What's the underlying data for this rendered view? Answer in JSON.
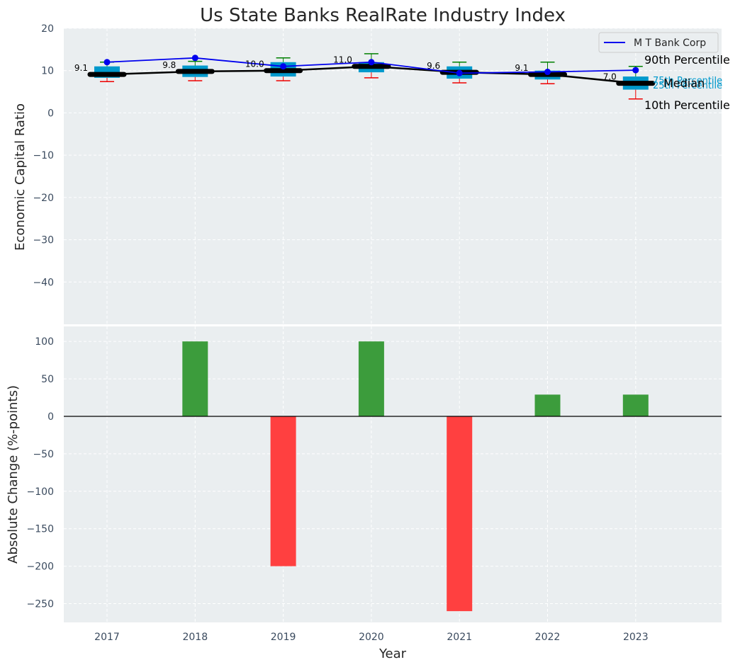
{
  "chart_data": [
    {
      "type": "box",
      "title": "Us State Banks RealRate Industry Index",
      "ylabel": "Economic Capital Ratio",
      "xlabel": "",
      "categories": [
        "2017",
        "2018",
        "2019",
        "2020",
        "2021",
        "2022",
        "2023"
      ],
      "ylim": [
        -50,
        20
      ],
      "yticks": [
        20,
        10,
        0,
        -10,
        -20,
        -30,
        -40
      ],
      "boxes": [
        {
          "year": "2017",
          "p10": 7.4,
          "q1": 8.3,
          "median": 9.1,
          "q3": 11.0,
          "p90": 12.0
        },
        {
          "year": "2018",
          "p10": 7.6,
          "q1": 8.5,
          "median": 9.8,
          "q3": 11.2,
          "p90": 12.2
        },
        {
          "year": "2019",
          "p10": 7.6,
          "q1": 8.6,
          "median": 10.0,
          "q3": 12.0,
          "p90": 13.0
        },
        {
          "year": "2020",
          "p10": 8.3,
          "q1": 9.6,
          "median": 11.0,
          "q3": 12.0,
          "p90": 14.0
        },
        {
          "year": "2021",
          "p10": 7.1,
          "q1": 8.1,
          "median": 9.6,
          "q3": 11.0,
          "p90": 12.0
        },
        {
          "year": "2022",
          "p10": 6.9,
          "q1": 7.9,
          "median": 9.1,
          "q3": 10.0,
          "p90": 12.0
        },
        {
          "year": "2023",
          "p10": 3.3,
          "q1": 5.5,
          "median": 7.0,
          "q3": 8.6,
          "p90": 11.0
        }
      ],
      "median_labels": [
        "9.1",
        "9.8",
        "10.0",
        "11.0",
        "9.6",
        "9.1",
        "7.0"
      ],
      "series": [
        {
          "name": "M T Bank Corp",
          "values": [
            12.0,
            13.0,
            11.0,
            12.0,
            9.4,
            9.7,
            10.1
          ],
          "color": "#0000ee"
        }
      ],
      "median_line_color": "#000000",
      "box_color": "#0099cc",
      "whisker_upper_color": "#008000",
      "whisker_lower_color": "#ee0000",
      "legend": {
        "entries": [
          "M T Bank Corp"
        ],
        "placement": "top-right"
      },
      "annotations": {
        "p90": "90th Percentile",
        "p75": "75th Percentile",
        "median": "Median",
        "p25": "25th Percentile",
        "p10": "10th Percentile"
      }
    },
    {
      "type": "bar",
      "xlabel": "Year",
      "ylabel": "Absolute Change (%-points)",
      "categories": [
        "2017",
        "2018",
        "2019",
        "2020",
        "2021",
        "2022",
        "2023"
      ],
      "values": [
        0,
        100,
        -200,
        100,
        -260,
        29,
        29
      ],
      "ylim": [
        -275,
        120
      ],
      "yticks": [
        100,
        50,
        0,
        -50,
        -100,
        -150,
        -200,
        -250
      ],
      "positive_color": "#3c9c3c",
      "negative_color": "#ff4040"
    }
  ]
}
